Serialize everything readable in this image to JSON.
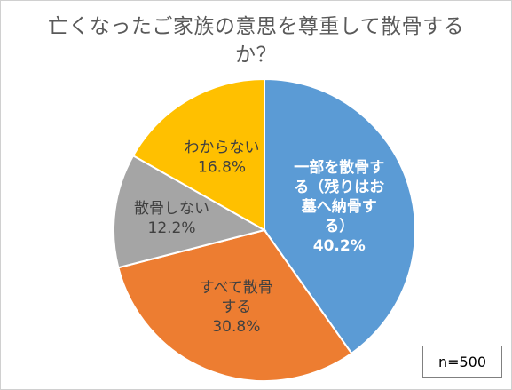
{
  "chart_data": {
    "type": "pie",
    "title": "亡くなったご家族の意思を尊重して散骨するか？",
    "title_lines": [
      "亡くなったご家族の意思を尊重して散骨する",
      "か？"
    ],
    "slices": [
      {
        "label_lines": [
          "一部を散骨す",
          "る（残りはお",
          "墓へ納骨す",
          "る）"
        ],
        "value": 40.2,
        "value_text": "40.2%",
        "color": "#5b9bd5",
        "label_color": "#ffffff"
      },
      {
        "label_lines": [
          "すべて散骨",
          "する"
        ],
        "value": 30.8,
        "value_text": "30.8%",
        "color": "#ed7d31",
        "label_color": "#404040"
      },
      {
        "label_lines": [
          "散骨しない"
        ],
        "value": 12.2,
        "value_text": "12.2%",
        "color": "#a5a5a5",
        "label_color": "#404040"
      },
      {
        "label_lines": [
          "わからない"
        ],
        "value": 16.8,
        "value_text": "16.8%",
        "color": "#ffc000",
        "label_color": "#404040"
      }
    ],
    "start_angle_deg": 0,
    "direction": "clockwise",
    "sample_note": "n=500"
  }
}
